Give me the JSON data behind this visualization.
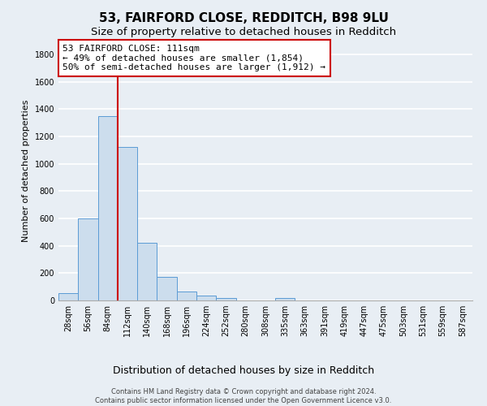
{
  "title": "53, FAIRFORD CLOSE, REDDITCH, B98 9LU",
  "subtitle": "Size of property relative to detached houses in Redditch",
  "xlabel": "Distribution of detached houses by size in Redditch",
  "ylabel": "Number of detached properties",
  "bar_labels": [
    "28sqm",
    "56sqm",
    "84sqm",
    "112sqm",
    "140sqm",
    "168sqm",
    "196sqm",
    "224sqm",
    "252sqm",
    "280sqm",
    "308sqm",
    "335sqm",
    "363sqm",
    "391sqm",
    "419sqm",
    "447sqm",
    "475sqm",
    "503sqm",
    "531sqm",
    "559sqm",
    "587sqm"
  ],
  "bar_values": [
    55,
    600,
    1350,
    1120,
    420,
    170,
    65,
    35,
    15,
    0,
    0,
    20,
    0,
    0,
    0,
    0,
    0,
    0,
    0,
    0,
    0
  ],
  "bar_color": "#ccdded",
  "bar_edgecolor": "#5b9bd5",
  "ylim": [
    0,
    1900
  ],
  "yticks": [
    0,
    200,
    400,
    600,
    800,
    1000,
    1200,
    1400,
    1600,
    1800
  ],
  "vline_color": "#cc0000",
  "annotation_text": "53 FAIRFORD CLOSE: 111sqm\n← 49% of detached houses are smaller (1,854)\n50% of semi-detached houses are larger (1,912) →",
  "annotation_box_facecolor": "#ffffff",
  "annotation_box_edgecolor": "#cc0000",
  "footer": "Contains HM Land Registry data © Crown copyright and database right 2024.\nContains public sector information licensed under the Open Government Licence v3.0.",
  "bg_color": "#e8eef4",
  "plot_bg_color": "#e8eef4",
  "grid_color": "#ffffff",
  "title_fontsize": 11,
  "subtitle_fontsize": 9.5,
  "xlabel_fontsize": 9,
  "ylabel_fontsize": 8,
  "tick_fontsize": 7,
  "annotation_fontsize": 8,
  "footer_fontsize": 6
}
